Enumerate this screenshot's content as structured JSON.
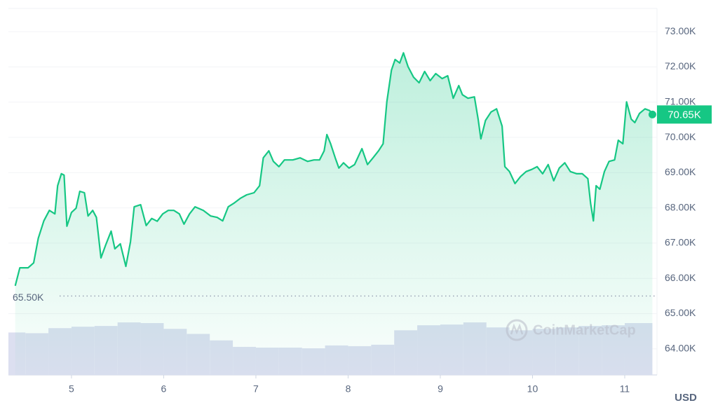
{
  "chart_data": {
    "type": "area",
    "color": "#16c784",
    "x": [
      4.39,
      4.44,
      4.53,
      4.59,
      4.64,
      4.7,
      4.76,
      4.82,
      4.85,
      4.89,
      4.92,
      4.95,
      5.0,
      5.05,
      5.09,
      5.14,
      5.18,
      5.23,
      5.27,
      5.32,
      5.37,
      5.43,
      5.47,
      5.53,
      5.59,
      5.64,
      5.68,
      5.75,
      5.81,
      5.87,
      5.93,
      5.99,
      6.05,
      6.11,
      6.17,
      6.22,
      6.28,
      6.34,
      6.43,
      6.51,
      6.58,
      6.64,
      6.7,
      6.76,
      6.83,
      6.9,
      6.98,
      7.04,
      7.08,
      7.14,
      7.19,
      7.25,
      7.31,
      7.4,
      7.48,
      7.56,
      7.63,
      7.69,
      7.74,
      7.77,
      7.81,
      7.86,
      7.9,
      7.95,
      8.01,
      8.07,
      8.15,
      8.21,
      8.27,
      8.33,
      8.38,
      8.42,
      8.47,
      8.51,
      8.56,
      8.6,
      8.65,
      8.71,
      8.77,
      8.83,
      8.89,
      8.95,
      9.02,
      9.08,
      9.14,
      9.2,
      9.24,
      9.3,
      9.37,
      9.41,
      9.44,
      9.49,
      9.55,
      9.61,
      9.67,
      9.7,
      9.75,
      9.81,
      9.87,
      9.93,
      9.99,
      10.05,
      10.11,
      10.17,
      10.23,
      10.29,
      10.35,
      10.41,
      10.48,
      10.54,
      10.6,
      10.63,
      10.66,
      10.69,
      10.73,
      10.78,
      10.83,
      10.89,
      10.93,
      10.98,
      11.02,
      11.07,
      11.11,
      11.16,
      11.22,
      11.27,
      11.3
    ],
    "values": [
      65790,
      66300,
      66300,
      66440,
      67140,
      67630,
      67930,
      67830,
      68630,
      68970,
      68930,
      67480,
      67870,
      67990,
      68470,
      68430,
      67770,
      67930,
      67730,
      66580,
      66940,
      67340,
      66840,
      66980,
      66340,
      67040,
      68030,
      68090,
      67500,
      67700,
      67620,
      67830,
      67930,
      67930,
      67830,
      67540,
      67830,
      68030,
      67930,
      67770,
      67730,
      67630,
      68030,
      68130,
      68270,
      68370,
      68430,
      68630,
      69420,
      69620,
      69320,
      69170,
      69360,
      69360,
      69420,
      69320,
      69360,
      69360,
      69620,
      70080,
      69820,
      69420,
      69130,
      69280,
      69130,
      69230,
      69680,
      69230,
      69420,
      69620,
      69820,
      71010,
      71910,
      72210,
      72110,
      72400,
      72010,
      71710,
      71550,
      71870,
      71610,
      71810,
      71670,
      71750,
      71110,
      71470,
      71210,
      71110,
      71150,
      70520,
      69960,
      70480,
      70720,
      70810,
      70320,
      69170,
      69030,
      68690,
      68890,
      69030,
      69090,
      69170,
      68970,
      69230,
      68770,
      69130,
      69280,
      69030,
      68970,
      68970,
      68830,
      68130,
      67630,
      68630,
      68530,
      69030,
      69320,
      69360,
      69920,
      69820,
      71010,
      70520,
      70420,
      70680,
      70810,
      70760,
      70650
    ],
    "volume": {
      "color": "#dcdff0",
      "x": [
        4.375,
        4.625,
        4.875,
        5.125,
        5.375,
        5.625,
        5.875,
        6.125,
        6.375,
        6.625,
        6.875,
        7.125,
        7.375,
        7.625,
        7.875,
        8.125,
        8.375,
        8.625,
        8.875,
        9.125,
        9.375,
        9.625,
        9.875,
        10.125,
        10.375,
        10.625,
        10.875,
        11.125
      ],
      "values": [
        59,
        58,
        65,
        67,
        68,
        73,
        72,
        64,
        57,
        48,
        39,
        38,
        38,
        37,
        41,
        40,
        42,
        62,
        69,
        70,
        73,
        66,
        62,
        64,
        66,
        68,
        69,
        72
      ]
    },
    "xlim": [
      4.316,
      11.35
    ],
    "xticks": [
      5,
      6,
      7,
      8,
      9,
      10,
      11
    ],
    "ylim": [
      63260,
      73660
    ],
    "yticks": [
      {
        "value": 64000,
        "label": "64.00K"
      },
      {
        "value": 65000,
        "label": "65.00K"
      },
      {
        "value": 66000,
        "label": "66.00K"
      },
      {
        "value": 67000,
        "label": "67.00K"
      },
      {
        "value": 68000,
        "label": "68.00K"
      },
      {
        "value": 69000,
        "label": "69.00K"
      },
      {
        "value": 70000,
        "label": "70.00K"
      },
      {
        "value": 71000,
        "label": "71.00K"
      },
      {
        "value": 72000,
        "label": "72.00K"
      },
      {
        "value": 73000,
        "label": "73.00K"
      }
    ],
    "grid": true,
    "reference_line": {
      "value": 65500,
      "label": "65.50K"
    },
    "last_price": {
      "value": 70650,
      "label": "70.65K"
    },
    "currency": "USD",
    "watermark": "CoinMarketCap"
  }
}
